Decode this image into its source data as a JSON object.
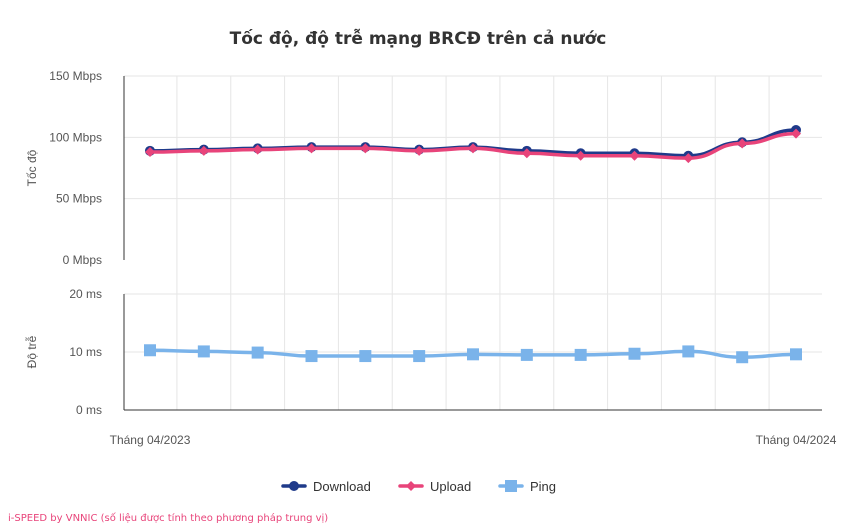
{
  "chart_data": {
    "type": "line",
    "title": "Tốc độ, độ trễ mạng BRCĐ trên cả nước",
    "x_labels": [
      "Tháng 04/2023",
      "Tháng 04/2024"
    ],
    "point_count": 13,
    "panels": [
      {
        "ylabel": "Tốc độ",
        "ylim": [
          0,
          150
        ],
        "yticks": [
          0,
          50,
          100,
          150
        ],
        "yticklabels": [
          "0 Mbps",
          "50 Mbps",
          "100 Mbps",
          "150 Mbps"
        ],
        "series": [
          {
            "name": "Download",
            "color": "#1f3a8a",
            "marker": "circle",
            "values": [
              89,
              90,
              91,
              92,
              92,
              90,
              92,
              89,
              87,
              87,
              85,
              96,
              106
            ]
          },
          {
            "name": "Upload",
            "color": "#e8447a",
            "marker": "diamond",
            "values": [
              88,
              89,
              90,
              91,
              91,
              89,
              91,
              87,
              85,
              85,
              83,
              95,
              103
            ]
          }
        ]
      },
      {
        "ylabel": "Độ trễ",
        "ylim": [
          0,
          20
        ],
        "yticks": [
          0,
          10,
          20
        ],
        "yticklabels": [
          "0 ms",
          "10 ms",
          "20 ms"
        ],
        "series": [
          {
            "name": "Ping",
            "color": "#7ab3ea",
            "marker": "square",
            "values": [
              10.3,
              10.1,
              9.9,
              9.3,
              9.3,
              9.3,
              9.6,
              9.5,
              9.5,
              9.7,
              10.1,
              9.1,
              9.6
            ]
          }
        ]
      }
    ],
    "grid": true,
    "legend": "bottom-center",
    "legend_items": [
      "Download",
      "Upload",
      "Ping"
    ]
  },
  "credit": "i-SPEED by VNNIC (số liệu được tính theo phương pháp trung vị)"
}
